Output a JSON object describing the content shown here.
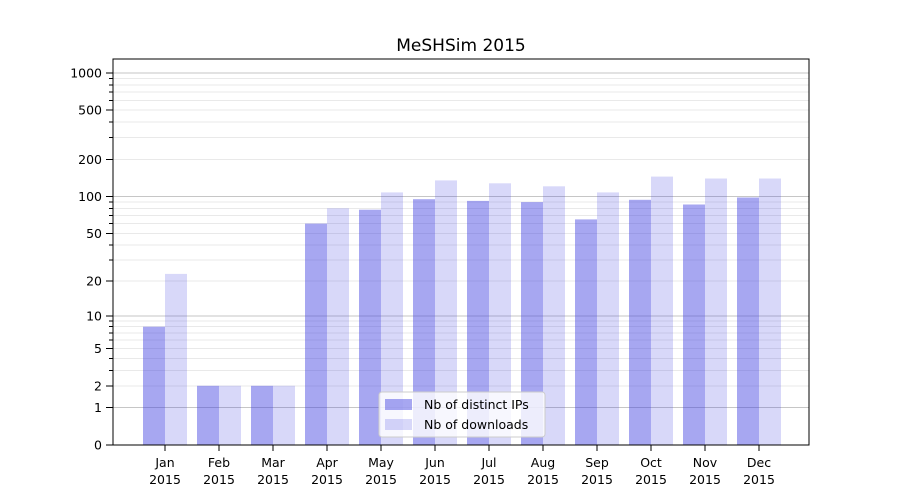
{
  "chart_data": {
    "type": "bar",
    "title": "MeSHSim 2015",
    "months": [
      "Jan",
      "Feb",
      "Mar",
      "Apr",
      "May",
      "Jun",
      "Jul",
      "Aug",
      "Sep",
      "Oct",
      "Nov",
      "Dec"
    ],
    "year": "2015",
    "categories": [
      "Jan 2015",
      "Feb 2015",
      "Mar 2015",
      "Apr 2015",
      "May 2015",
      "Jun 2015",
      "Jul 2015",
      "Aug 2015",
      "Sep 2015",
      "Oct 2015",
      "Nov 2015",
      "Dec 2015"
    ],
    "series": [
      {
        "name": "Nb of distinct IPs",
        "color": "#3c3ce0",
        "alpha": 0.45,
        "values": [
          8,
          2,
          2,
          60,
          78,
          95,
          92,
          90,
          65,
          94,
          86,
          98
        ]
      },
      {
        "name": "Nb of downloads",
        "color": "#3c3ce0",
        "alpha": 0.2,
        "values": [
          23,
          2,
          2,
          80,
          108,
          135,
          128,
          121,
          108,
          145,
          140,
          140
        ]
      }
    ],
    "yscale": "log1p",
    "y_ticks": [
      0,
      1,
      2,
      5,
      10,
      20,
      50,
      100,
      200,
      500,
      1000
    ],
    "ylim": [
      0,
      1300
    ],
    "xlabel": "",
    "ylabel": "",
    "grid": "both",
    "legend": {
      "position": "lower center",
      "entries": [
        "Nb of distinct IPs",
        "Nb of downloads"
      ]
    },
    "colors": {
      "major_grid": "#c6c6c6",
      "minor_grid": "#e9e9e9",
      "axis": "#000000",
      "background": "#ffffff"
    }
  }
}
